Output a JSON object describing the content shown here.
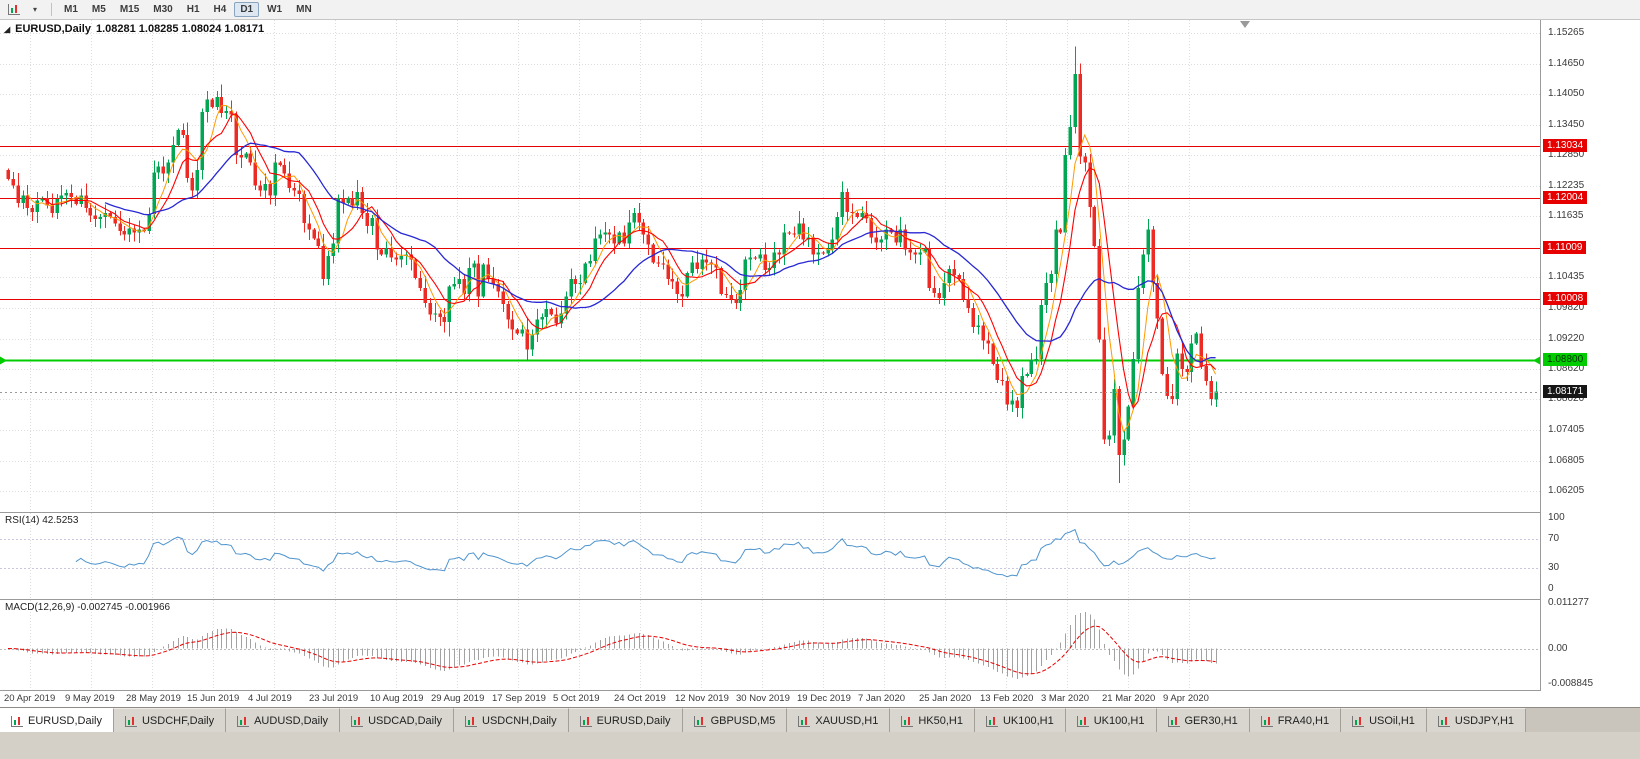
{
  "toolbar": {
    "timeframes": [
      {
        "label": "M1",
        "active": false
      },
      {
        "label": "M5",
        "active": false
      },
      {
        "label": "M15",
        "active": false
      },
      {
        "label": "M30",
        "active": false
      },
      {
        "label": "H1",
        "active": false
      },
      {
        "label": "H4",
        "active": false
      },
      {
        "label": "D1",
        "active": true
      },
      {
        "label": "W1",
        "active": false
      },
      {
        "label": "MN",
        "active": false
      }
    ]
  },
  "chart_header": {
    "symbol": "EURUSD,Daily",
    "ohlc": "1.08281 1.08285 1.08024 1.08171"
  },
  "chart_data": {
    "type": "candlestick",
    "symbol": "EURUSD",
    "period": "Daily",
    "ylim": [
      1.0579,
      1.1552
    ],
    "first_open": 1.1255,
    "closes": [
      1.1238,
      1.1225,
      1.119,
      1.1205,
      1.118,
      1.1172,
      1.1195,
      1.12,
      1.1185,
      1.117,
      1.1198,
      1.1205,
      1.121,
      1.1202,
      1.1188,
      1.1205,
      1.118,
      1.1165,
      1.1158,
      1.1162,
      1.117,
      1.1162,
      1.115,
      1.1135,
      1.1128,
      1.114,
      1.1132,
      1.1138,
      1.1135,
      1.1168,
      1.125,
      1.1262,
      1.1248,
      1.127,
      1.1305,
      1.1334,
      1.1325,
      1.124,
      1.1215,
      1.1255,
      1.137,
      1.1395,
      1.138,
      1.14,
      1.1368,
      1.1372,
      1.1365,
      1.1285,
      1.128,
      1.1288,
      1.127,
      1.1225,
      1.1215,
      1.1228,
      1.1205,
      1.127,
      1.1265,
      1.1248,
      1.122,
      1.1215,
      1.1208,
      1.115,
      1.1138,
      1.112,
      1.1105,
      1.104,
      1.1085,
      1.111,
      1.12,
      1.119,
      1.12,
      1.1185,
      1.1212,
      1.117,
      1.1145,
      1.116,
      1.1098,
      1.1088,
      1.11,
      1.1082,
      1.1078,
      1.1085,
      1.1088,
      1.1078,
      1.1042,
      1.1022,
      1.0992,
      1.097,
      1.0972,
      1.0965,
      1.0955,
      1.1025,
      1.103,
      1.104,
      1.101,
      1.1062,
      1.107,
      1.1005,
      1.1068,
      1.104,
      1.103,
      1.1015,
      1.099,
      1.096,
      1.094,
      1.0932,
      1.094,
      1.09,
      1.093,
      1.096,
      1.0965,
      1.098,
      1.097,
      1.0952,
      1.0972,
      1.1005,
      1.104,
      1.103,
      1.1032,
      1.107,
      1.1075,
      1.112,
      1.1128,
      1.1132,
      1.1128,
      1.111,
      1.1132,
      1.111,
      1.1152,
      1.117,
      1.1152,
      1.1128,
      1.1108,
      1.1072,
      1.107,
      1.1068,
      1.104,
      1.1035,
      1.101,
      1.1005,
      1.1052,
      1.1072,
      1.106,
      1.1078,
      1.1072,
      1.1068,
      1.1062,
      1.101,
      1.1008,
      1.1,
      1.0992,
      1.1018,
      1.1078,
      1.1082,
      1.108,
      1.1088,
      1.1058,
      1.1062,
      1.1092,
      1.1088,
      1.1132,
      1.113,
      1.1128,
      1.115,
      1.1118,
      1.1122,
      1.1088,
      1.1092,
      1.109,
      1.1098,
      1.1118,
      1.1162,
      1.1212,
      1.1172,
      1.117,
      1.1162,
      1.117,
      1.116,
      1.1122,
      1.1112,
      1.1118,
      1.1138,
      1.1132,
      1.1112,
      1.1138,
      1.1098,
      1.1092,
      1.1088,
      1.1092,
      1.11,
      1.1022,
      1.1012,
      1.1002,
      1.1032,
      1.106,
      1.1048,
      1.104,
      1.1,
      1.0982,
      1.0945,
      1.0948,
      1.0918,
      1.0912,
      1.0872,
      1.084,
      1.0838,
      1.0792,
      1.08,
      1.0785,
      1.0848,
      1.0852,
      1.088,
      1.0882,
      1.0988,
      1.1032,
      1.105,
      1.1138,
      1.1132,
      1.1285,
      1.134,
      1.1445,
      1.1282,
      1.127,
      1.1182,
      1.1105,
      1.092,
      1.0722,
      1.073,
      1.0822,
      1.0692,
      1.0722,
      1.0788,
      1.0882,
      1.1022,
      1.1088,
      1.1138,
      1.1032,
      1.0962,
      1.0852,
      1.0808,
      1.0802,
      1.0892,
      1.0862,
      1.0856,
      1.0912,
      1.0932,
      1.0868,
      1.0838,
      1.0802,
      1.0817
    ],
    "wick_overrides": {
      "43": {
        "high": 1.1412
      },
      "65": {
        "low": 1.1027
      },
      "91": {
        "low": 1.0926
      },
      "107": {
        "low": 1.0879
      },
      "220": {
        "high": 1.15
      },
      "229": {
        "low": 1.0636
      }
    },
    "price_axis_labels": [
      "1.15265",
      "1.14650",
      "1.14050",
      "1.13450",
      "1.12850",
      "1.12235",
      "1.11635",
      "1.10435",
      "1.09820",
      "1.09220",
      "1.08620",
      "1.08020",
      "1.07405",
      "1.06805",
      "1.06205"
    ],
    "resistance_lines": [
      {
        "label": "1.13034",
        "value": 1.13034
      },
      {
        "label": "1.12004",
        "value": 1.12004
      },
      {
        "label": "1.11009",
        "value": 1.11009
      },
      {
        "label": "1.10008",
        "value": 1.10008
      }
    ],
    "support_line": {
      "label": "1.08800",
      "value": 1.088
    },
    "current_price": {
      "label": "1.08171",
      "value": 1.08171
    },
    "date_labels": [
      "20 Apr 2019",
      "9 May 2019",
      "28 May 2019",
      "15 Jun 2019",
      "4 Jul 2019",
      "23 Jul 2019",
      "10 Aug 2019",
      "29 Aug 2019",
      "17 Sep 2019",
      "5 Oct 2019",
      "24 Oct 2019",
      "12 Nov 2019",
      "30 Nov 2019",
      "19 Dec 2019",
      "7 Jan 2020",
      "25 Jan 2020",
      "13 Feb 2020",
      "3 Mar 2020",
      "21 Mar 2020",
      "9 Apr 2020"
    ],
    "indicators": {
      "rsi": {
        "label": "RSI(14)",
        "value": "42.5253",
        "period": 14,
        "axis_labels": [
          {
            "label": "100",
            "value": 100
          },
          {
            "label": "70",
            "value": 70
          },
          {
            "label": "30",
            "value": 30
          },
          {
            "label": "0",
            "value": 0
          }
        ],
        "levels": [
          70,
          30
        ]
      },
      "macd": {
        "label": "MACD(12,26,9)",
        "value": "-0.002745 -0.001966",
        "axis_labels": [
          {
            "label": "0.011277",
            "value": 0.011277
          },
          {
            "label": "0.00",
            "value": 0
          },
          {
            "label": "-0.008845",
            "value": -0.008845
          }
        ]
      }
    },
    "colors": {
      "up": "#00a651",
      "down": "#ee2a24",
      "ma_fast": "#ff9900",
      "ma_mid": "#ff0000",
      "ma_slow": "#2828d4",
      "rsi": "#4f94cd",
      "macd_hist": "#a2a2a2",
      "macd_signal": "#e60000",
      "resistance": "#e60000",
      "support": "#00cc00",
      "grid": "#dddddd"
    }
  },
  "tabs": [
    {
      "label": "EURUSD,Daily",
      "active": true
    },
    {
      "label": "USDCHF,Daily",
      "active": false
    },
    {
      "label": "AUDUSD,Daily",
      "active": false
    },
    {
      "label": "USDCAD,Daily",
      "active": false
    },
    {
      "label": "USDCNH,Daily",
      "active": false
    },
    {
      "label": "EURUSD,Daily",
      "active": false
    },
    {
      "label": "GBPUSD,M5",
      "active": false
    },
    {
      "label": "XAUUSD,H1",
      "active": false
    },
    {
      "label": "HK50,H1",
      "active": false
    },
    {
      "label": "UK100,H1",
      "active": false
    },
    {
      "label": "UK100,H1",
      "active": false
    },
    {
      "label": "GER30,H1",
      "active": false
    },
    {
      "label": "FRA40,H1",
      "active": false
    },
    {
      "label": "USOil,H1",
      "active": false
    },
    {
      "label": "USDJPY,H1",
      "active": false
    }
  ]
}
